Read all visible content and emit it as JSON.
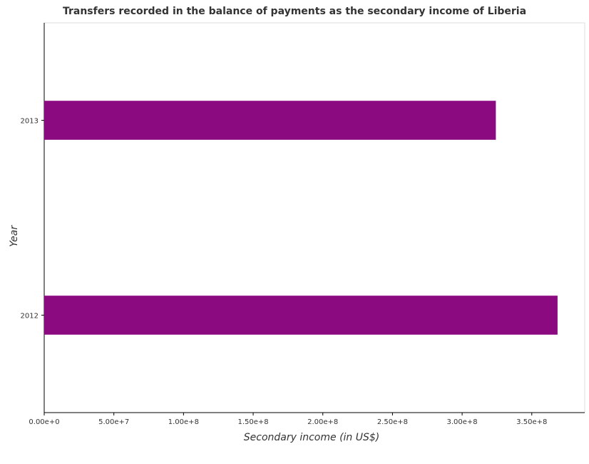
{
  "chart_data": {
    "type": "bar",
    "orientation": "horizontal",
    "title": "Transfers recorded in the balance of payments as the secondary income of Liberia",
    "xlabel": "Secondary income (in US$)",
    "ylabel": "Year",
    "categories": [
      "2012",
      "2013"
    ],
    "values": [
      368500000,
      324200000
    ],
    "xlim": [
      0,
      388000000
    ],
    "xticks": [
      {
        "value": 0,
        "label": "0.00e+0"
      },
      {
        "value": 50000000,
        "label": "5.00e+7"
      },
      {
        "value": 100000000,
        "label": "1.00e+8"
      },
      {
        "value": 150000000,
        "label": "1.50e+8"
      },
      {
        "value": 200000000,
        "label": "2.00e+8"
      },
      {
        "value": 250000000,
        "label": "2.50e+8"
      },
      {
        "value": 300000000,
        "label": "3.00e+8"
      },
      {
        "value": 350000000,
        "label": "3.50e+8"
      }
    ],
    "bar_color": "#8b0a80",
    "grid": false,
    "legend": "none"
  }
}
